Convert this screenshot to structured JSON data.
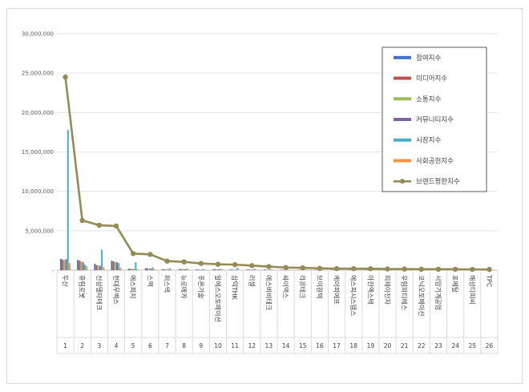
{
  "chart_data": {
    "type": "bar",
    "title": "",
    "xlabel": "",
    "ylabel": "",
    "ylim": [
      0,
      30000000
    ],
    "yticks": [
      "30,000,000",
      "25,000,000",
      "20,000,000",
      "15,000,000",
      "10,000,000",
      "5,000,000",
      "-"
    ],
    "indices": [
      "1",
      "2",
      "3",
      "4",
      "5",
      "6",
      "7",
      "8",
      "9",
      "10",
      "11",
      "12",
      "13",
      "14",
      "15",
      "16",
      "17",
      "18",
      "19",
      "20",
      "21",
      "22",
      "23",
      "24",
      "25",
      "26"
    ],
    "categories": [
      "두산",
      "휴림로봇",
      "신성델타테크",
      "현대무벡스",
      "에스피지",
      "스맥",
      "퍼스텍",
      "뉴로메카",
      "푸른기술",
      "알에스오토메이션",
      "삼익THK",
      "러셀",
      "에스비비테크",
      "싸이맥스",
      "라온테크",
      "브이원텍",
      "케이피에프",
      "에스피시스템스",
      "아진엑스텍",
      "피제이전자",
      "우림피티에스",
      "코닉오토메이션",
      "서암기계공업",
      "포메탈",
      "해성티피씨",
      "TPC"
    ],
    "series": [
      {
        "name": "참여지수",
        "color": "#4472c4",
        "kind": "bar",
        "values": [
          1450000,
          1300000,
          800000,
          1200000,
          180000,
          250000,
          120000,
          150000,
          90000,
          130000,
          80000,
          90000,
          70000,
          60000,
          50000,
          50000,
          40000,
          40000,
          35000,
          30000,
          30000,
          30000,
          25000,
          25000,
          20000,
          20000
        ]
      },
      {
        "name": "미디어지수",
        "color": "#c0504d",
        "kind": "bar",
        "values": [
          1350000,
          1200000,
          650000,
          1100000,
          160000,
          220000,
          110000,
          130000,
          80000,
          120000,
          70000,
          80000,
          60000,
          55000,
          45000,
          45000,
          35000,
          35000,
          30000,
          28000,
          28000,
          26000,
          22000,
          22000,
          18000,
          18000
        ]
      },
      {
        "name": "소통지수",
        "color": "#9bbb59",
        "kind": "bar",
        "values": [
          1300000,
          1100000,
          600000,
          1050000,
          150000,
          200000,
          100000,
          120000,
          75000,
          110000,
          65000,
          75000,
          55000,
          50000,
          40000,
          40000,
          30000,
          30000,
          28000,
          25000,
          25000,
          24000,
          20000,
          20000,
          16000,
          16000
        ]
      },
      {
        "name": "커뮤니티지수",
        "color": "#8064a2",
        "kind": "bar",
        "values": [
          1400000,
          1000000,
          550000,
          1000000,
          140000,
          180000,
          90000,
          110000,
          70000,
          100000,
          60000,
          70000,
          50000,
          45000,
          38000,
          38000,
          28000,
          28000,
          25000,
          22000,
          22000,
          22000,
          18000,
          18000,
          15000,
          15000
        ]
      },
      {
        "name": "시장지수",
        "color": "#4bacc6",
        "kind": "bar",
        "values": [
          17800000,
          700000,
          2600000,
          900000,
          1000000,
          350000,
          250000,
          200000,
          120000,
          150000,
          300000,
          180000,
          100000,
          80000,
          80000,
          70000,
          60000,
          60000,
          50000,
          40000,
          40000,
          40000,
          30000,
          30000,
          25000,
          25000
        ]
      },
      {
        "name": "사회공헌지수",
        "color": "#f79646",
        "kind": "bar",
        "values": [
          900000,
          500000,
          400000,
          300000,
          100000,
          120000,
          80000,
          90000,
          60000,
          80000,
          50000,
          50000,
          40000,
          35000,
          30000,
          30000,
          25000,
          25000,
          20000,
          18000,
          18000,
          18000,
          15000,
          15000,
          12000,
          12000
        ]
      },
      {
        "name": "브랜드평판지수",
        "color": "#948a54",
        "kind": "line",
        "values": [
          24500000,
          6300000,
          5700000,
          5600000,
          2100000,
          2000000,
          1150000,
          1050000,
          850000,
          750000,
          700000,
          580000,
          450000,
          330000,
          300000,
          230000,
          200000,
          190000,
          180000,
          150000,
          140000,
          120000,
          120000,
          110000,
          100000,
          90000
        ]
      }
    ],
    "legend_position": "top-right",
    "grid": true
  }
}
